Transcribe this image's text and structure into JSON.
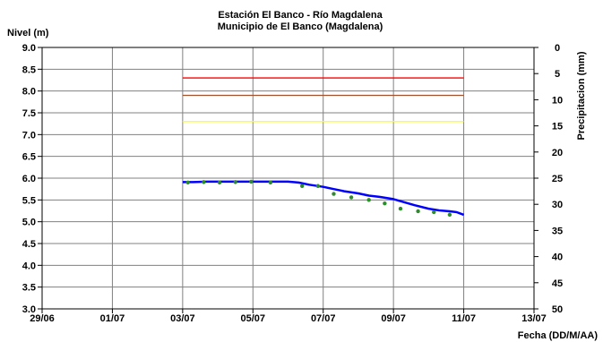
{
  "chart_data": {
    "type": "line",
    "title_lines": [
      "Estación El Banco - Río Magdalena",
      "Municipio de El Banco (Magdalena)"
    ],
    "ylabel": "Nivel (m)",
    "y2label": "Precipitacion (mm)",
    "xlabel": "Fecha (DD/M/AA)",
    "x_ticks": [
      "29/06",
      "01/07",
      "03/07",
      "05/07",
      "07/07",
      "09/07",
      "11/07",
      "13/07"
    ],
    "x_range_days": [
      0,
      14
    ],
    "ylim": [
      3.0,
      9.0
    ],
    "y_ticks": [
      "3.0",
      "3.5",
      "4.0",
      "4.5",
      "5.0",
      "5.5",
      "6.0",
      "6.5",
      "7.0",
      "7.5",
      "8.0",
      "8.5",
      "9.0"
    ],
    "y2lim": [
      0,
      50
    ],
    "y2_ticks": [
      "0",
      "5",
      "10",
      "15",
      "20",
      "25",
      "30",
      "35",
      "40",
      "45",
      "50"
    ],
    "grid": true,
    "thresholds": [
      {
        "level": 8.3,
        "color": "#ff0000"
      },
      {
        "level": 7.9,
        "color": "#a0522d"
      },
      {
        "level": 7.3,
        "color": "#ffff00"
      }
    ],
    "threshold_span_days": [
      4.0,
      12.0
    ],
    "series": [
      {
        "kind": "line",
        "color": "#0000ff",
        "x": [
          4.0,
          4.3,
          4.7,
          5.0,
          5.5,
          6.0,
          6.5,
          7.0,
          7.3,
          7.6,
          8.0,
          8.3,
          8.6,
          9.0,
          9.3,
          9.6,
          10.0,
          10.3,
          10.6,
          11.0,
          11.3,
          11.6,
          11.8,
          11.9,
          12.0
        ],
        "y": [
          5.91,
          5.91,
          5.92,
          5.92,
          5.92,
          5.92,
          5.92,
          5.92,
          5.9,
          5.85,
          5.8,
          5.75,
          5.7,
          5.65,
          5.6,
          5.57,
          5.52,
          5.45,
          5.38,
          5.3,
          5.26,
          5.24,
          5.22,
          5.19,
          5.16
        ]
      },
      {
        "kind": "markers",
        "color": "#2e8b2e",
        "x": [
          4.15,
          4.6,
          5.05,
          5.5,
          5.95,
          6.5,
          7.4,
          7.85,
          8.3,
          8.8,
          9.3,
          9.75,
          10.2,
          10.7,
          11.15,
          11.6
        ],
        "y": [
          5.9,
          5.91,
          5.9,
          5.91,
          5.92,
          5.9,
          5.82,
          5.82,
          5.64,
          5.56,
          5.5,
          5.42,
          5.3,
          5.24,
          5.22,
          5.16
        ]
      }
    ]
  }
}
